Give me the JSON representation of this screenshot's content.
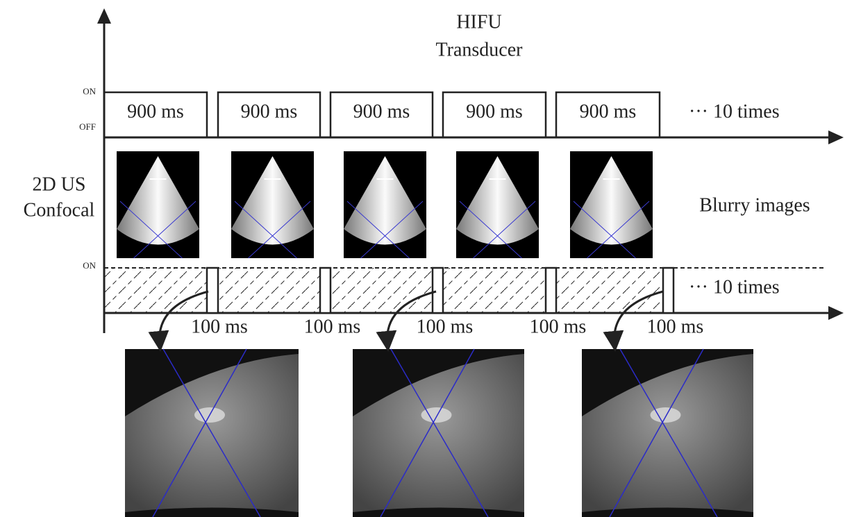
{
  "hifu_label": [
    "HIFU",
    "Transducer"
  ],
  "hifu_axis": {
    "on": "ON",
    "off": "OFF",
    "pulses": [
      "900 ms",
      "900 ms",
      "900 ms",
      "900 ms",
      "900 ms"
    ],
    "repeat": "··· 10 times"
  },
  "us_label": [
    "2D US",
    "Confocal"
  ],
  "blurry_label": "Blurry images",
  "us_axis": {
    "on": "ON",
    "pulses": [
      "100 ms",
      "100 ms",
      "100 ms",
      "100 ms",
      "100 ms"
    ],
    "repeat": "··· 10 times"
  }
}
